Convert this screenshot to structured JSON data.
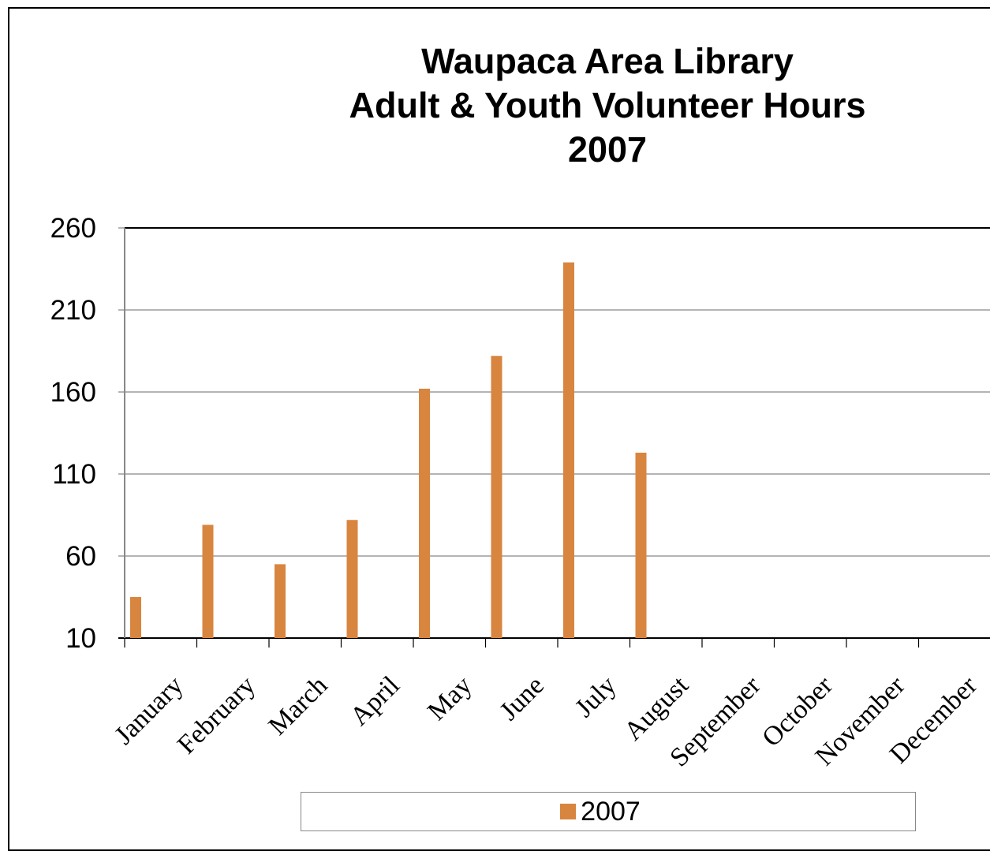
{
  "chart_data": {
    "type": "bar",
    "title_lines": [
      "Waupaca Area Library",
      "Adult & Youth Volunteer Hours",
      "2007"
    ],
    "categories": [
      "January",
      "February",
      "March",
      "April",
      "May",
      "June",
      "July",
      "August",
      "September",
      "October",
      "November",
      "December"
    ],
    "series": [
      {
        "name": "2007",
        "color": "#d8853f",
        "values": [
          35,
          79,
          55,
          82,
          162,
          182,
          239,
          123,
          null,
          null,
          null,
          null
        ]
      }
    ],
    "ylim": [
      10,
      260
    ],
    "yticks": [
      10,
      60,
      110,
      160,
      210,
      260
    ],
    "grid": true,
    "legend_position": "bottom"
  }
}
